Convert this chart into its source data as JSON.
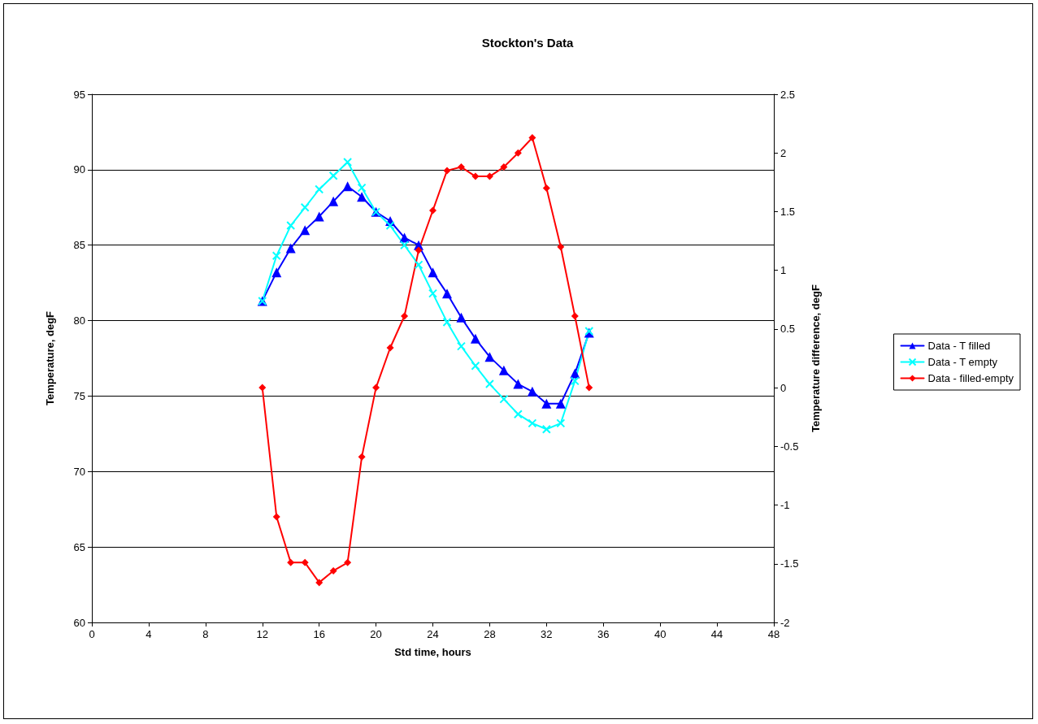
{
  "chart_data": {
    "type": "line",
    "title": "Stockton's Data",
    "xlabel": "Std time, hours",
    "ylabel": "Temperature, degF",
    "y2label": "Temperature difference, degF",
    "x": [
      12,
      13,
      14,
      15,
      16,
      17,
      18,
      19,
      20,
      21,
      22,
      23,
      24,
      25,
      26,
      27,
      28,
      29,
      30,
      31,
      32,
      33,
      34,
      35
    ],
    "xlim": [
      0,
      48
    ],
    "xticks": [
      0,
      4,
      8,
      12,
      16,
      20,
      24,
      28,
      32,
      36,
      40,
      44,
      48
    ],
    "ylim": [
      60,
      95
    ],
    "yticks": [
      60,
      65,
      70,
      75,
      80,
      85,
      90,
      95
    ],
    "y2lim": [
      -2,
      2.5
    ],
    "y2ticks": [
      -2,
      -1.5,
      -1,
      -0.5,
      0,
      0.5,
      1,
      1.5,
      2,
      2.5
    ],
    "grid": "y",
    "legend": "right",
    "series": [
      {
        "name": "Data - T filled",
        "color": "#0000ff",
        "marker": "triangle",
        "values": [
          81.3,
          83.2,
          84.8,
          86.0,
          86.9,
          87.9,
          88.9,
          88.2,
          87.2,
          86.6,
          85.5,
          85.0,
          83.2,
          81.8,
          80.2,
          78.8,
          77.6,
          76.7,
          75.8,
          75.3,
          74.5,
          74.5,
          76.5,
          79.2
        ]
      },
      {
        "name": "Data - T empty",
        "color": "#00ffff",
        "marker": "cross",
        "values": [
          81.3,
          84.3,
          86.3,
          87.5,
          88.7,
          89.6,
          90.5,
          88.8,
          87.2,
          86.3,
          85.0,
          83.7,
          81.8,
          79.9,
          78.3,
          77.0,
          75.8,
          74.8,
          73.8,
          73.2,
          72.8,
          73.2,
          76.0,
          79.3
        ]
      },
      {
        "name": "Data - filled-empty",
        "color": "#ff0000",
        "marker": "diamond",
        "axis": "y2",
        "values": [
          0.0,
          -1.1,
          -1.49,
          -1.49,
          -1.66,
          -1.56,
          -1.49,
          -0.59,
          0.0,
          0.34,
          0.61,
          1.17,
          1.51,
          1.85,
          1.88,
          1.8,
          1.8,
          1.88,
          2.0,
          2.13,
          1.7,
          1.2,
          0.61,
          0.0
        ]
      }
    ]
  }
}
